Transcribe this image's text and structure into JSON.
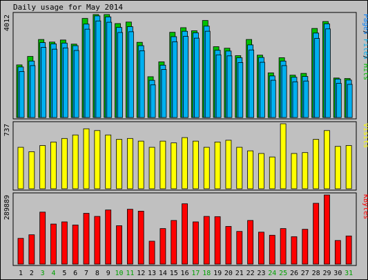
{
  "chart_data": {
    "type": "bar",
    "title": "Daily usage for May 2014",
    "categories": [
      "1",
      "2",
      "3",
      "4",
      "5",
      "6",
      "7",
      "8",
      "9",
      "10",
      "11",
      "12",
      "13",
      "14",
      "15",
      "16",
      "17",
      "18",
      "19",
      "20",
      "21",
      "22",
      "23",
      "24",
      "25",
      "26",
      "27",
      "28",
      "29",
      "30",
      "31"
    ],
    "weekend_days": [
      "3",
      "4",
      "10",
      "11",
      "17",
      "18",
      "24",
      "25",
      "31"
    ],
    "colors": {
      "background": "#c0c0c0",
      "hits": "#00c000",
      "files": "#00b0f0",
      "pages": "#0080ff",
      "visits": "#ffff00",
      "kbytes": "#ff0000",
      "weekday_label": "#000000",
      "weekend_label": "#00a000"
    },
    "panels": [
      {
        "name": "usage",
        "ymax_label": "4012",
        "ylim": [
          0,
          4012
        ],
        "legend": [
          "Pages",
          "Files",
          "Hits"
        ],
        "series": [
          {
            "name": "Hits",
            "values": [
              2050,
              2380,
              3040,
              2940,
              3020,
              2860,
              3860,
              4012,
              4012,
              3660,
              3720,
              2930,
              1590,
              2170,
              3320,
              3500,
              3380,
              3780,
              2760,
              2700,
              2410,
              3040,
              2430,
              1740,
              2330,
              1650,
              1720,
              3470,
              3740,
              1540,
              1520
            ]
          },
          {
            "name": "Files",
            "values": [
              1970,
              2200,
              2920,
              2870,
              2900,
              2800,
              3640,
              3960,
              3920,
              3510,
              3540,
              2800,
              1450,
              2040,
              3150,
              3360,
              3300,
              3560,
              2620,
              2590,
              2330,
              2830,
              2340,
              1620,
              2200,
              1570,
              1600,
              3290,
              3650,
              1500,
              1460
            ]
          },
          {
            "name": "Pages",
            "values": [
              1900,
              2130,
              2840,
              2770,
              2820,
              2720,
              3550,
              3870,
              3820,
              3420,
              3450,
              2710,
              1380,
              1980,
              3060,
              3270,
              3200,
              3470,
              2550,
              2510,
              2250,
              2740,
              2260,
              1560,
              2130,
              1500,
              1530,
              3190,
              3560,
              1440,
              1400
            ]
          }
        ]
      },
      {
        "name": "visits",
        "ymax_label": "737",
        "ylim": [
          0,
          737
        ],
        "legend": [
          "Visits"
        ],
        "series": [
          {
            "name": "Visits",
            "values": [
              470,
              420,
              490,
              530,
              570,
              610,
              680,
              660,
              610,
              560,
              570,
              540,
              470,
              540,
              520,
              580,
              540,
              470,
              530,
              550,
              470,
              430,
              400,
              360,
              737,
              400,
              410,
              560,
              660,
              480,
              490
            ]
          }
        ]
      },
      {
        "name": "kbytes",
        "ymax_label": "289889",
        "ylim": [
          0,
          289889
        ],
        "legend": [
          "KBytes"
        ],
        "series": [
          {
            "name": "KBytes",
            "values": [
              108000,
              123000,
              218000,
              168000,
              177000,
              164000,
              213000,
              200000,
              227000,
              161000,
              230000,
              222000,
              96000,
              149000,
              183000,
              253000,
              177000,
              200000,
              199000,
              158000,
              137000,
              183000,
              134000,
              121000,
              149000,
              115000,
              146000,
              255000,
              289889,
              99000,
              118000
            ]
          }
        ]
      }
    ]
  }
}
